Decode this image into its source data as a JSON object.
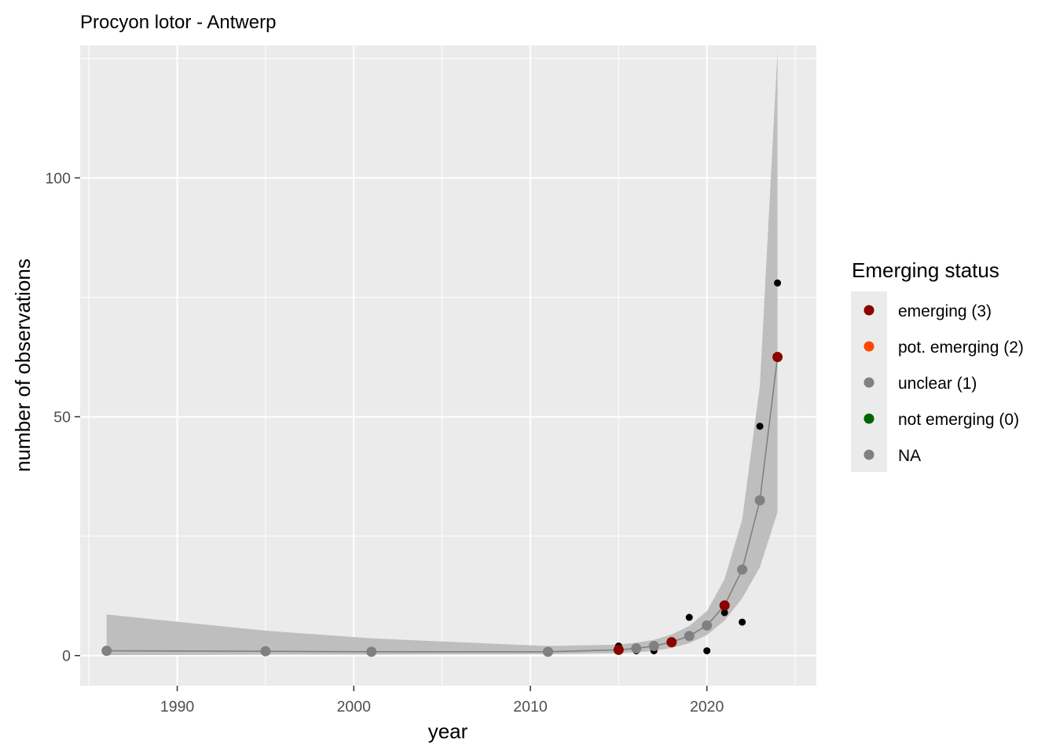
{
  "chart_data": {
    "type": "scatter",
    "title": "Procyon lotor - Antwerp",
    "xlabel": "year",
    "ylabel": "number of observations",
    "xlim": [
      1984.5,
      2026.2
    ],
    "ylim": [
      -6.3,
      127.7
    ],
    "x_ticks": [
      1990,
      2000,
      2010,
      2020
    ],
    "y_ticks": [
      0,
      50,
      100
    ],
    "x_tick_labels": [
      "1990",
      "2000",
      "2010",
      "2020"
    ],
    "y_tick_labels": [
      "0",
      "50",
      "100"
    ],
    "grid": true,
    "observed": {
      "color": "#000000",
      "points": [
        {
          "x": 1986,
          "y": 1
        },
        {
          "x": 1995,
          "y": 1
        },
        {
          "x": 2001,
          "y": 1
        },
        {
          "x": 2011,
          "y": 1
        },
        {
          "x": 2015,
          "y": 2
        },
        {
          "x": 2016,
          "y": 1
        },
        {
          "x": 2017,
          "y": 1
        },
        {
          "x": 2018,
          "y": 3
        },
        {
          "x": 2019,
          "y": 8
        },
        {
          "x": 2020,
          "y": 1
        },
        {
          "x": 2021,
          "y": 9
        },
        {
          "x": 2022,
          "y": 7
        },
        {
          "x": 2023,
          "y": 48
        },
        {
          "x": 2024,
          "y": 78
        }
      ]
    },
    "fit": {
      "line_color": "#808080",
      "band_color": "#bebebe",
      "points": [
        {
          "x": 1986,
          "y": 1.0,
          "lower": 0.1,
          "upper": 8.6,
          "status": "NA"
        },
        {
          "x": 1995,
          "y": 0.9,
          "lower": 0.2,
          "upper": 5.2,
          "status": "NA"
        },
        {
          "x": 2001,
          "y": 0.8,
          "lower": 0.2,
          "upper": 3.6,
          "status": "NA"
        },
        {
          "x": 2011,
          "y": 0.8,
          "lower": 0.3,
          "upper": 2.0,
          "status": "NA"
        },
        {
          "x": 2015,
          "y": 1.2,
          "lower": 0.5,
          "upper": 2.3,
          "status": "emerging (3)"
        },
        {
          "x": 2016,
          "y": 1.5,
          "lower": 0.7,
          "upper": 2.7,
          "status": "NA"
        },
        {
          "x": 2017,
          "y": 2.0,
          "lower": 1.0,
          "upper": 3.3,
          "status": "NA"
        },
        {
          "x": 2018,
          "y": 2.8,
          "lower": 1.6,
          "upper": 4.4,
          "status": "emerging (3)"
        },
        {
          "x": 2019,
          "y": 4.1,
          "lower": 2.6,
          "upper": 6.2,
          "status": "NA"
        },
        {
          "x": 2020,
          "y": 6.3,
          "lower": 4.3,
          "upper": 9.3,
          "status": "NA"
        },
        {
          "x": 2021,
          "y": 10.5,
          "lower": 7.3,
          "upper": 16.0,
          "status": "emerging (3)"
        },
        {
          "x": 2022,
          "y": 18.0,
          "lower": 12.0,
          "upper": 28.5,
          "status": "NA"
        },
        {
          "x": 2023,
          "y": 32.5,
          "lower": 18.5,
          "upper": 56.5,
          "status": "NA"
        },
        {
          "x": 2024,
          "y": 62.5,
          "lower": 30.0,
          "upper": 126.5,
          "status": "emerging (3)"
        }
      ]
    },
    "legend": {
      "title": "Emerging status",
      "position": "right",
      "entries": [
        {
          "label": "emerging (3)",
          "color": "#8b0000"
        },
        {
          "label": "pot. emerging (2)",
          "color": "#ff4500"
        },
        {
          "label": "unclear (1)",
          "color": "#808080"
        },
        {
          "label": "not emerging (0)",
          "color": "#006400"
        },
        {
          "label": "NA",
          "color": "#808080"
        }
      ]
    }
  }
}
